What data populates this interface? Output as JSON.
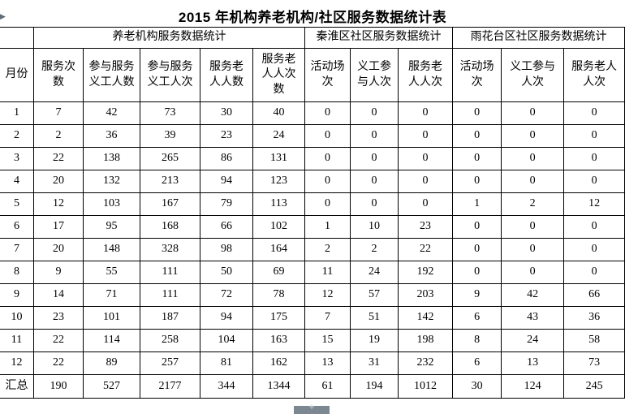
{
  "title": "2015 年机构养老机构/社区服务数据统计表",
  "icons": {
    "cursor_arrow": "▶",
    "resize_cross": "+"
  },
  "colors": {
    "border": "#000000",
    "text": "#000000",
    "background": "#ffffff",
    "handle_grey": "#7c8791"
  },
  "table": {
    "corner_label": "",
    "groups": [
      {
        "label": "养老机构服务数据统计",
        "span": 5
      },
      {
        "label": "秦淮区社区服务数据统计",
        "span": 3
      },
      {
        "label": "雨花台区社区服务数据统计",
        "span": 3
      }
    ],
    "columns": [
      "月份",
      "服务次数",
      "参与服务义工人数",
      "参与服务义工人次",
      "服务老人人数",
      "服务老人人次数",
      "活动场次",
      "义工参与人次",
      "服务老人人次",
      "活动场次",
      "义工参与人次",
      "服务老人人次"
    ],
    "rows": [
      [
        "1",
        "7",
        "42",
        "73",
        "30",
        "40",
        "0",
        "0",
        "0",
        "0",
        "0",
        "0"
      ],
      [
        "2",
        "2",
        "36",
        "39",
        "23",
        "24",
        "0",
        "0",
        "0",
        "0",
        "0",
        "0"
      ],
      [
        "3",
        "22",
        "138",
        "265",
        "86",
        "131",
        "0",
        "0",
        "0",
        "0",
        "0",
        "0"
      ],
      [
        "4",
        "20",
        "132",
        "213",
        "94",
        "123",
        "0",
        "0",
        "0",
        "0",
        "0",
        "0"
      ],
      [
        "5",
        "12",
        "103",
        "167",
        "79",
        "113",
        "0",
        "0",
        "0",
        "1",
        "2",
        "12"
      ],
      [
        "6",
        "17",
        "95",
        "168",
        "66",
        "102",
        "1",
        "10",
        "23",
        "0",
        "0",
        "0"
      ],
      [
        "7",
        "20",
        "148",
        "328",
        "98",
        "164",
        "2",
        "2",
        "22",
        "0",
        "0",
        "0"
      ],
      [
        "8",
        "9",
        "55",
        "111",
        "50",
        "69",
        "11",
        "24",
        "192",
        "0",
        "0",
        "0"
      ],
      [
        "9",
        "14",
        "71",
        "111",
        "72",
        "78",
        "12",
        "57",
        "203",
        "9",
        "42",
        "66"
      ],
      [
        "10",
        "23",
        "101",
        "187",
        "94",
        "175",
        "7",
        "51",
        "142",
        "6",
        "43",
        "36"
      ],
      [
        "11",
        "22",
        "114",
        "258",
        "104",
        "163",
        "15",
        "19",
        "198",
        "8",
        "24",
        "58"
      ],
      [
        "12",
        "22",
        "89",
        "257",
        "81",
        "162",
        "13",
        "31",
        "232",
        "6",
        "13",
        "73"
      ]
    ],
    "total_row": {
      "label": "汇总",
      "values": [
        "190",
        "527",
        "2177",
        "344",
        "1344",
        "61",
        "194",
        "1012",
        "30",
        "124",
        "245"
      ]
    }
  }
}
